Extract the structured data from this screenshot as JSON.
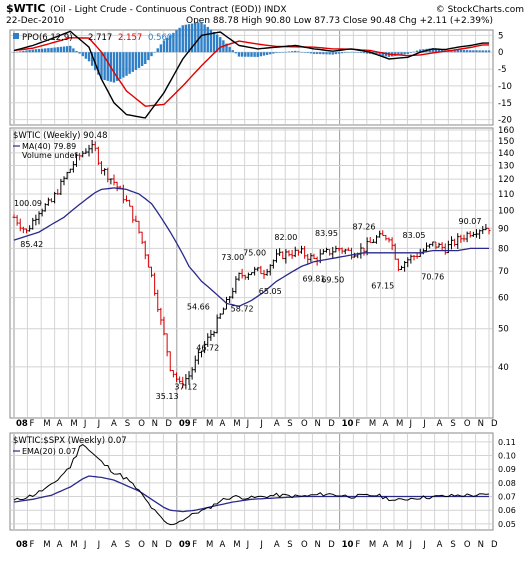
{
  "header": {
    "symbol": "$WTIC",
    "description": "(Oil - Light Crude - Continuous Contract (EOD))",
    "exchange": "INDX",
    "credit": "© StockCharts.com",
    "date": "22-Dec-2010",
    "ohlc_line": "Open 88.78  High 90.80  Low 87.73  Close 90.48  Chg +2.11 (+2.39%)"
  },
  "ppo_legend": {
    "label": "PPO(6,12,9)",
    "v1": "2.717",
    "v2": "2.157",
    "v3": "0.560"
  },
  "price_legend": {
    "title": "$WTIC (Weekly) 90.48",
    "ma": "MA(40) 79.89",
    "volume": "Volume undef"
  },
  "ratio_legend": {
    "title": "$WTIC:$SPX (Weekly) 0.07",
    "ema": "EMA(20) 0.07"
  },
  "colors": {
    "up": "#000000",
    "down": "#d40000",
    "ppo_line": "#000000",
    "signal": "#e00000",
    "hist": "#2e7fc7",
    "ma": "#2a2a8c",
    "grid": "#d4d4d4"
  },
  "chart_data": [
    {
      "type": "line",
      "title": "PPO(6,12,9)",
      "ylim": [
        -21,
        6
      ],
      "yticks": [
        "5",
        "0",
        "-5",
        "-10",
        "-15",
        "-20"
      ],
      "x_index": [
        0,
        6,
        12,
        18,
        24,
        28,
        32,
        36,
        42,
        48,
        54,
        60,
        66,
        72,
        78,
        84,
        90,
        96,
        102,
        108,
        114,
        120,
        126,
        130,
        134,
        138,
        142,
        146,
        150
      ],
      "series": [
        {
          "name": "PPO",
          "values": [
            0.5,
            2.0,
            4.0,
            6.2,
            1.5,
            -8.0,
            -15.0,
            -18.5,
            -19.5,
            -12.0,
            -2.0,
            5.0,
            6.0,
            2.0,
            1.0,
            1.5,
            2.0,
            1.0,
            0.3,
            1.0,
            0.0,
            -2.0,
            -1.5,
            0.0,
            1.0,
            0.8,
            1.5,
            2.0,
            2.7
          ]
        },
        {
          "name": "Signal",
          "values": [
            0.5,
            1.2,
            2.7,
            4.3,
            4.2,
            0.0,
            -6.0,
            -11.5,
            -16.0,
            -15.5,
            -10.0,
            -4.0,
            1.5,
            3.3,
            2.4,
            1.7,
            1.6,
            1.5,
            1.0,
            0.9,
            0.5,
            -0.6,
            -1.0,
            -0.8,
            -0.2,
            0.3,
            0.8,
            1.4,
            2.16
          ]
        }
      ]
    },
    {
      "type": "line",
      "title": "$WTIC (Weekly) 90.48",
      "ylim": [
        30,
        160
      ],
      "log_scale": true,
      "yticks": [
        160,
        150,
        140,
        130,
        120,
        110,
        100,
        90,
        80,
        70,
        60,
        50,
        40
      ],
      "x_ticks": [
        [
          "08",
          0
        ],
        [
          "F",
          4.3
        ],
        [
          "M",
          8.7
        ],
        [
          "A",
          13
        ],
        [
          "M",
          17.4
        ],
        [
          "J",
          21.7
        ],
        [
          "J",
          26.1
        ],
        [
          "A",
          30.4
        ],
        [
          "S",
          34.8
        ],
        [
          "O",
          39.1
        ],
        [
          "N",
          43.4
        ],
        [
          "D",
          47.8
        ],
        [
          "09",
          52.1
        ],
        [
          "F",
          56.4
        ],
        [
          "M",
          60.8
        ],
        [
          "A",
          65.1
        ],
        [
          "M",
          69.5
        ],
        [
          "J",
          73.8
        ],
        [
          "J",
          78.2
        ],
        [
          "A",
          82.5
        ],
        [
          "S",
          86.8
        ],
        [
          "O",
          91.2
        ],
        [
          "N",
          95.5
        ],
        [
          "D",
          99.9
        ],
        [
          "10",
          104.2
        ],
        [
          "F",
          108.6
        ],
        [
          "M",
          112.9
        ],
        [
          "A",
          117.3
        ],
        [
          "M",
          121.6
        ],
        [
          "J",
          125.9
        ],
        [
          "J",
          130.3
        ],
        [
          "A",
          134.6
        ],
        [
          "S",
          139
        ],
        [
          "O",
          143.3
        ],
        [
          "N",
          147.7
        ],
        [
          "D",
          152
        ]
      ],
      "x_index": [
        0,
        4,
        8,
        12,
        16,
        20,
        24,
        26,
        28,
        32,
        36,
        40,
        44,
        47,
        50,
        53,
        56,
        60,
        64,
        68,
        72,
        76,
        80,
        84,
        88,
        92,
        96,
        100,
        104,
        108,
        112,
        116,
        120,
        123,
        126,
        130,
        134,
        138,
        142,
        146,
        150
      ],
      "series": [
        {
          "name": "Close",
          "values": [
            96,
            88,
            100,
            105,
            120,
            135,
            145,
            142,
            128,
            118,
            105,
            88,
            68,
            52,
            40,
            36,
            38,
            44,
            50,
            58,
            68,
            70,
            70,
            76,
            78,
            78,
            75,
            78,
            80,
            78,
            80,
            85,
            86,
            72,
            75,
            78,
            82,
            80,
            84,
            88,
            90.48
          ]
        },
        {
          "name": "MA(40)",
          "values": [
            84,
            86,
            88,
            92,
            96,
            102,
            108,
            111,
            113,
            114,
            113,
            110,
            104,
            96,
            88,
            80,
            72,
            66,
            62,
            58,
            57,
            59,
            62,
            66,
            69,
            72,
            74,
            75,
            76,
            77,
            78,
            78,
            78,
            78,
            78,
            78,
            79,
            79,
            79,
            80,
            80
          ]
        }
      ],
      "annotations": [
        {
          "text": "100.09",
          "x": 0,
          "y": 100.09
        },
        {
          "text": "85.42",
          "x": 2,
          "y": 85.42
        },
        {
          "text": "35.13",
          "x": 49,
          "y": 35.13
        },
        {
          "text": "37.12",
          "x": 55,
          "y": 37.12
        },
        {
          "text": "46.72",
          "x": 62,
          "y": 46.72
        },
        {
          "text": "54.66",
          "x": 59,
          "y": 54.66
        },
        {
          "text": "73.00",
          "x": 70,
          "y": 73.0
        },
        {
          "text": "58.72",
          "x": 73,
          "y": 58.72
        },
        {
          "text": "75.00",
          "x": 77,
          "y": 75.0
        },
        {
          "text": "65.05",
          "x": 82,
          "y": 65.05
        },
        {
          "text": "82.00",
          "x": 87,
          "y": 82.0
        },
        {
          "text": "69.81",
          "x": 96,
          "y": 69.81
        },
        {
          "text": "83.95",
          "x": 100,
          "y": 83.95
        },
        {
          "text": "69.50",
          "x": 102,
          "y": 69.5
        },
        {
          "text": "87.26",
          "x": 112,
          "y": 87.26
        },
        {
          "text": "67.15",
          "x": 118,
          "y": 67.15
        },
        {
          "text": "83.05",
          "x": 128,
          "y": 83.05
        },
        {
          "text": "70.76",
          "x": 134,
          "y": 70.76
        },
        {
          "text": "90.07",
          "x": 147,
          "y": 90.07
        }
      ]
    },
    {
      "type": "line",
      "title": "$WTIC:$SPX (Weekly) 0.07",
      "ylim": [
        0.047,
        0.115
      ],
      "yticks": [
        "0.11",
        "0.10",
        "0.09",
        "0.08",
        "0.07",
        "0.06",
        "0.05"
      ],
      "x_index": [
        0,
        6,
        12,
        18,
        22,
        24,
        28,
        32,
        36,
        40,
        44,
        48,
        50,
        54,
        58,
        62,
        66,
        70,
        76,
        84,
        92,
        100,
        108,
        116,
        122,
        128,
        136,
        144,
        150
      ],
      "series": [
        {
          "name": "$WTIC:$SPX",
          "values": [
            0.067,
            0.071,
            0.078,
            0.092,
            0.11,
            0.104,
            0.095,
            0.088,
            0.083,
            0.074,
            0.062,
            0.052,
            0.049,
            0.053,
            0.058,
            0.061,
            0.067,
            0.07,
            0.069,
            0.071,
            0.07,
            0.072,
            0.07,
            0.071,
            0.067,
            0.069,
            0.07,
            0.071,
            0.071
          ]
        },
        {
          "name": "EMA(20)",
          "values": [
            0.066,
            0.068,
            0.071,
            0.077,
            0.083,
            0.085,
            0.084,
            0.082,
            0.078,
            0.074,
            0.068,
            0.062,
            0.06,
            0.059,
            0.06,
            0.062,
            0.064,
            0.066,
            0.068,
            0.069,
            0.07,
            0.07,
            0.07,
            0.07,
            0.07,
            0.07,
            0.07,
            0.07,
            0.07
          ]
        }
      ]
    }
  ]
}
